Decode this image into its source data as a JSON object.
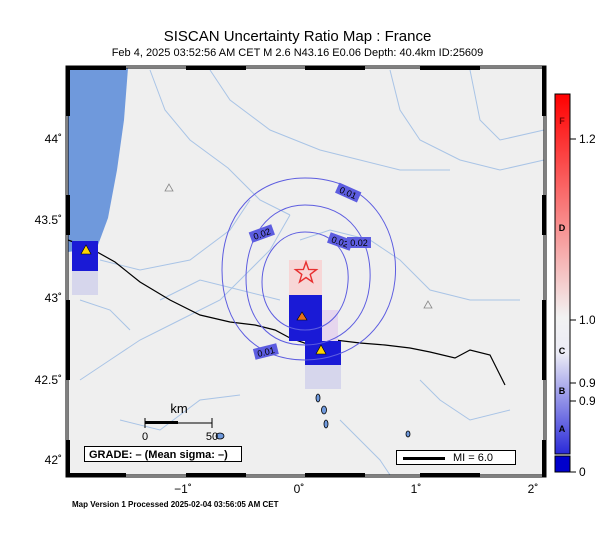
{
  "title": "SISCAN Uncertainty Ratio Map : France",
  "subtitle": "Feb  4, 2025 03:52:56 AM CET   M 2.6    N43.16 E0.06    Depth: 40.4km    ID:25609",
  "footer": "Map Version 1 Processed 2025-02-04 03:56:05 AM CET",
  "grade": "GRADE: – (Mean sigma: –)",
  "legend": {
    "mi_label": "MI = 6.0"
  },
  "scale_bar": {
    "unit": "km",
    "ticks": [
      "0",
      "50"
    ]
  },
  "axes": {
    "lat_labels": [
      "44˚",
      "43.5˚",
      "43˚",
      "42.5˚",
      "42˚"
    ],
    "lon_labels": [
      "−1˚",
      "0˚",
      "1˚",
      "2˚"
    ]
  },
  "contour_labels": [
    "0.01",
    "0.02",
    "0.02",
    "0.02",
    "0.01"
  ],
  "colorbar": {
    "letters": [
      "F",
      "D",
      "C",
      "B",
      "A"
    ],
    "values": [
      "1.2",
      "1.0",
      "0.9",
      "0.9",
      "0"
    ],
    "colors": {
      "top": "#ff0000",
      "mid": "#f2f2f2",
      "bottom": "#0000cc"
    }
  },
  "colors": {
    "land": "#efefef",
    "sea": "#6f99dc",
    "river": "#a9c4e6",
    "contour": "#5d5de0",
    "epicenter": "#e83030",
    "cell_dark": "#1a1ad6"
  },
  "markers": {
    "epicenter": "star",
    "stations": [
      "triangle-yellow",
      "triangle-yellow",
      "triangle-orange",
      "triangle-outline",
      "triangle-outline"
    ]
  }
}
